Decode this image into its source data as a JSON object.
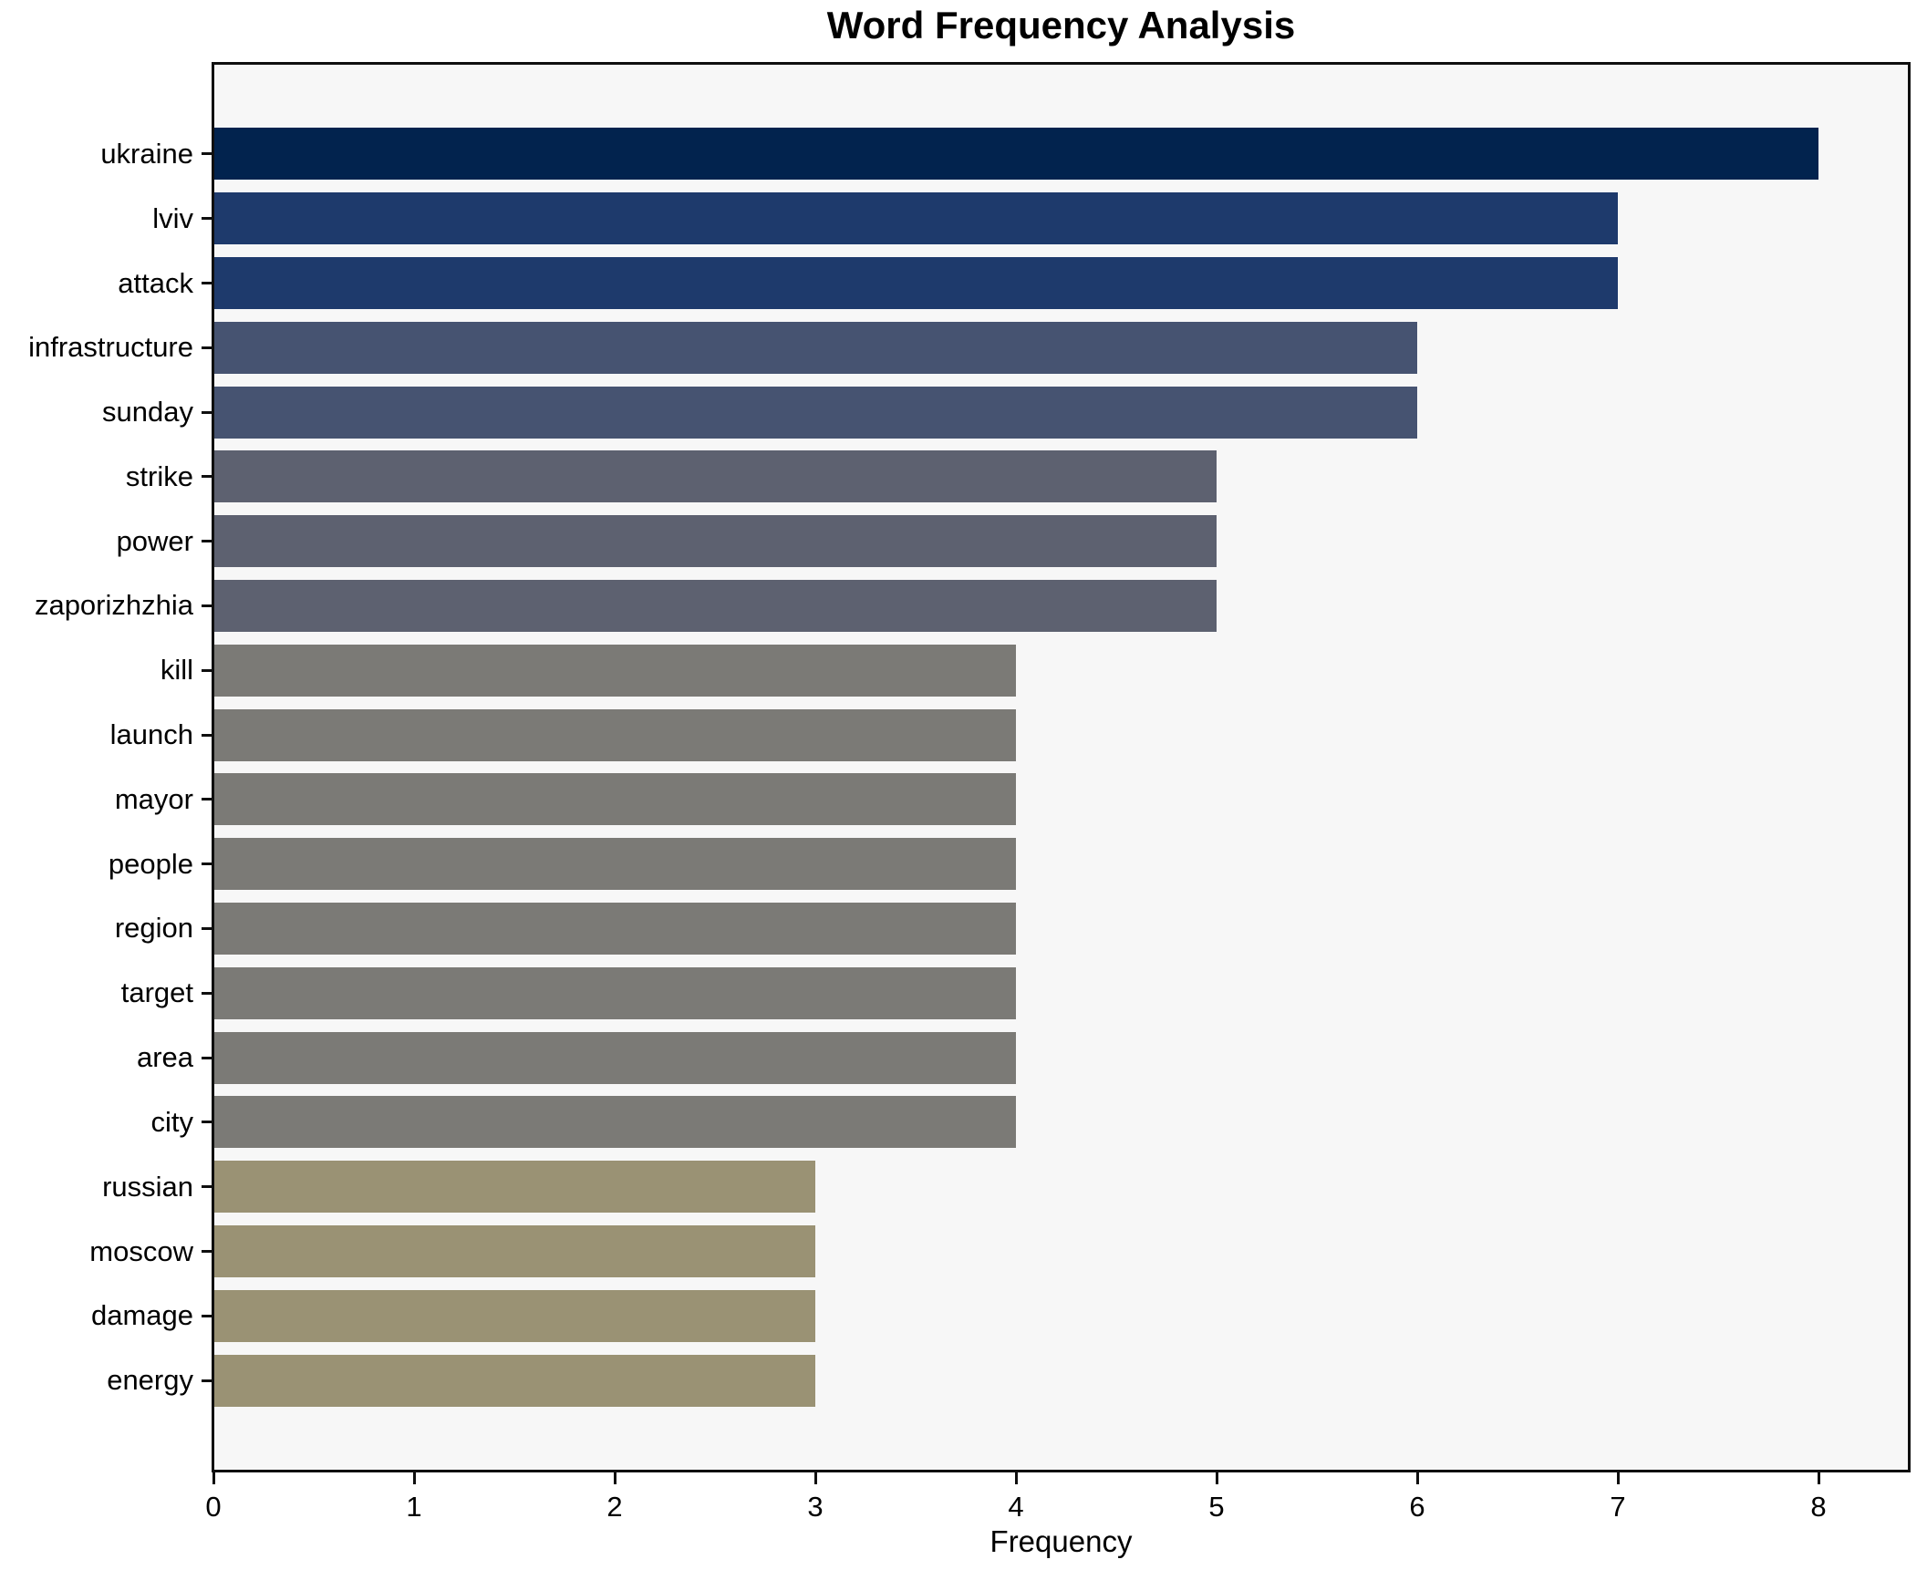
{
  "chart_data": {
    "type": "bar",
    "orientation": "horizontal",
    "title": "Word Frequency Analysis",
    "xlabel": "Frequency",
    "ylabel": "",
    "categories": [
      "ukraine",
      "lviv",
      "attack",
      "infrastructure",
      "sunday",
      "strike",
      "power",
      "zaporizhzhia",
      "kill",
      "launch",
      "mayor",
      "people",
      "region",
      "target",
      "area",
      "city",
      "russian",
      "moscow",
      "damage",
      "energy"
    ],
    "values": [
      8,
      7,
      7,
      6,
      6,
      5,
      5,
      5,
      4,
      4,
      4,
      4,
      4,
      4,
      4,
      4,
      3,
      3,
      3,
      3
    ],
    "bar_colors": [
      "#02234e",
      "#1e3a6c",
      "#1e3a6c",
      "#465371",
      "#465371",
      "#5d6170",
      "#5d6170",
      "#5d6170",
      "#7b7a76",
      "#7b7a76",
      "#7b7a76",
      "#7b7a76",
      "#7b7a76",
      "#7b7a76",
      "#7b7a76",
      "#7b7a76",
      "#9a9274",
      "#9a9274",
      "#9a9274",
      "#9a9274"
    ],
    "xticks": [
      0,
      1,
      2,
      3,
      4,
      5,
      6,
      7,
      8
    ],
    "xlim": [
      0,
      8.45
    ],
    "grid": false,
    "legend": null,
    "plot_background": "#f7f7f7",
    "axis_color": "#0f0f0f",
    "title_color": "#000000"
  }
}
